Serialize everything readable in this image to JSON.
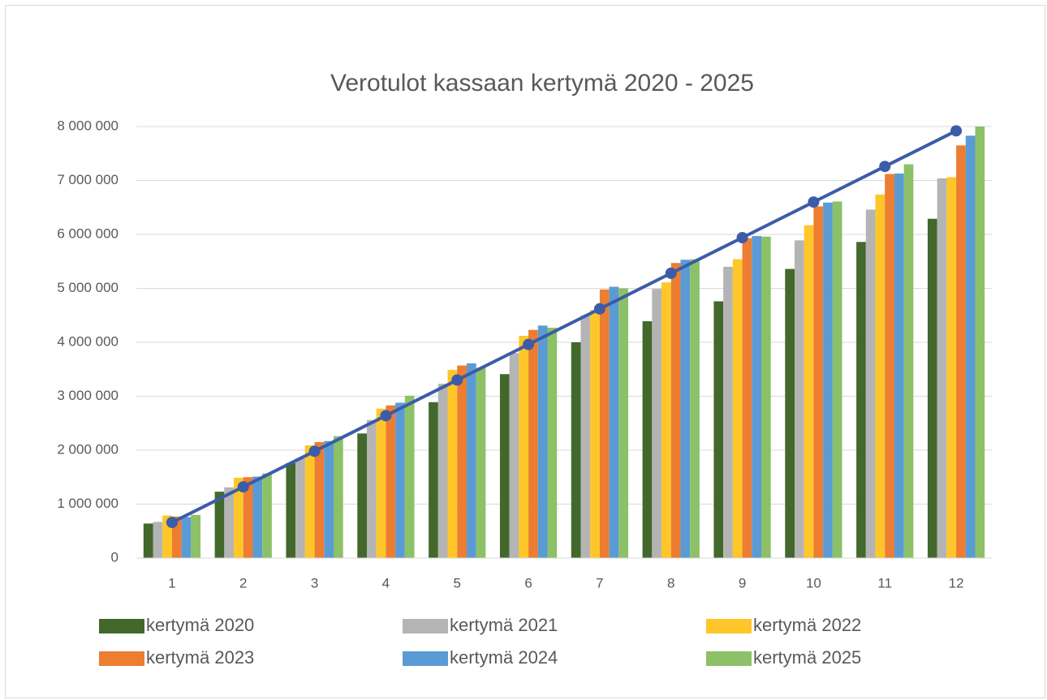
{
  "chart_data": {
    "type": "bar",
    "title": "Verotulot kassaan kertymä 2020 - 2025",
    "categories": [
      "1",
      "2",
      "3",
      "4",
      "5",
      "6",
      "7",
      "8",
      "9",
      "10",
      "11",
      "12"
    ],
    "series": [
      {
        "name": "kertymä 2020",
        "color": "#43682b",
        "values": [
          640000,
          1230000,
          1760000,
          2310000,
          2890000,
          3410000,
          4000000,
          4390000,
          4760000,
          5360000,
          5860000,
          6290000
        ]
      },
      {
        "name": "kertymä 2021",
        "color": "#b4b4b4",
        "values": [
          670000,
          1310000,
          1850000,
          2560000,
          3230000,
          3800000,
          4500000,
          4990000,
          5400000,
          5890000,
          6460000,
          7040000
        ]
      },
      {
        "name": "kertymä 2022",
        "color": "#ffc62a",
        "values": [
          790000,
          1490000,
          2090000,
          2770000,
          3490000,
          4120000,
          4600000,
          5110000,
          5540000,
          6170000,
          6740000,
          7060000
        ]
      },
      {
        "name": "kertymä 2023",
        "color": "#ed7d31",
        "values": [
          770000,
          1500000,
          2150000,
          2830000,
          3570000,
          4230000,
          4980000,
          5470000,
          5930000,
          6520000,
          7120000,
          7650000
        ]
      },
      {
        "name": "kertymä 2024",
        "color": "#5b9bd5",
        "values": [
          760000,
          1510000,
          2170000,
          2880000,
          3610000,
          4310000,
          5030000,
          5530000,
          5970000,
          6590000,
          7130000,
          7830000
        ]
      },
      {
        "name": "kertymä 2025",
        "color": "#8cc168",
        "values": [
          800000,
          1570000,
          2260000,
          3010000,
          3530000,
          4270000,
          5000000,
          5540000,
          5960000,
          6610000,
          7300000,
          8000000
        ]
      },
      {
        "type": "line",
        "color": "#3b5ca8",
        "values": [
          660000,
          1320000,
          1980000,
          2640000,
          3300000,
          3960000,
          4620000,
          5280000,
          5940000,
          6600000,
          7260000,
          7920000
        ]
      }
    ],
    "ylim": [
      0,
      8000000
    ],
    "yticks": [
      0,
      {
        "value": 1000000,
        "label": "1 000 000"
      },
      {
        "value": 2000000,
        "label": "2 000 000"
      },
      {
        "value": 3000000,
        "label": "3 000 000"
      },
      {
        "value": 4000000,
        "label": "4 000 000"
      },
      {
        "value": 5000000,
        "label": "5 000 000"
      },
      {
        "value": 6000000,
        "label": "6 000 000"
      },
      {
        "value": 7000000,
        "label": "7 000 000"
      },
      {
        "value": 8000000,
        "label": "8 000 000"
      }
    ],
    "grid": true,
    "legend": "bottom"
  }
}
